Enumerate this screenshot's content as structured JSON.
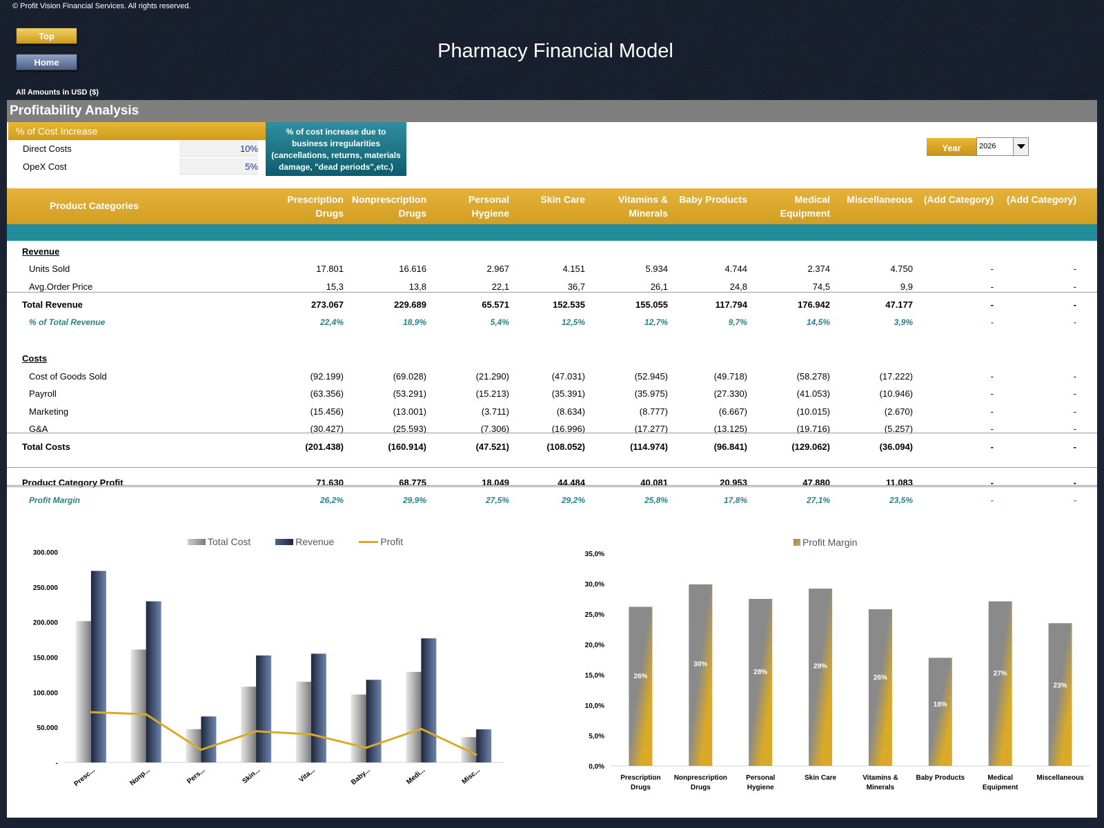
{
  "copyright": "© Profit Vision Financial Services. All rights reserved.",
  "nav": {
    "top_label": "Top",
    "home_label": "Home"
  },
  "title": "Pharmacy Financial Model",
  "amounts_note": "All Amounts in  USD ($)",
  "section_title": "Profitability Analysis",
  "cost_increase": {
    "header": "% of Cost Increase",
    "rows": [
      {
        "label": "Direct Costs",
        "value": "10%"
      },
      {
        "label": "OpeX Cost",
        "value": "5%"
      }
    ],
    "note": "% of cost increase due to business irregularities (cancellations, returns, materials damage, \"dead periods\",etc.)"
  },
  "year": {
    "label": "Year",
    "value": "2026"
  },
  "table": {
    "header_label": "Product Categories",
    "columns": [
      "Prescription\nDrugs",
      "Nonprescription\nDrugs",
      "Personal\nHygiene",
      "Skin Care",
      "Vitamins &\nMinerals",
      "Baby Products",
      "Medical\nEquipment",
      "Miscellaneous",
      "(Add Category)",
      "(Add Category)"
    ],
    "revenue_title": "Revenue",
    "units_sold": {
      "label": "Units Sold",
      "values": [
        "17.801",
        "16.616",
        "2.967",
        "4.151",
        "5.934",
        "4.744",
        "2.374",
        "4.750",
        "-",
        "-"
      ]
    },
    "avg_price": {
      "label": "Avg.Order Price",
      "values": [
        "15,3",
        "13,8",
        "22,1",
        "36,7",
        "26,1",
        "24,8",
        "74,5",
        "9,9",
        "-",
        "-"
      ]
    },
    "total_revenue": {
      "label": "Total Revenue",
      "values": [
        "273.067",
        "229.689",
        "65.571",
        "152.535",
        "155.055",
        "117.794",
        "176.942",
        "47.177",
        "-",
        "-"
      ]
    },
    "pct_revenue": {
      "label": "% of Total Revenue",
      "values": [
        "22,4%",
        "18,9%",
        "5,4%",
        "12,5%",
        "12,7%",
        "9,7%",
        "14,5%",
        "3,9%",
        "-",
        "-"
      ]
    },
    "costs_title": "Costs",
    "cogs": {
      "label": "Cost of Goods Sold",
      "values": [
        "(92.199)",
        "(69.028)",
        "(21.290)",
        "(47.031)",
        "(52.945)",
        "(49.718)",
        "(58.278)",
        "(17.222)",
        "-",
        "-"
      ]
    },
    "payroll": {
      "label": "Payroll",
      "values": [
        "(63.356)",
        "(53.291)",
        "(15.213)",
        "(35.391)",
        "(35.975)",
        "(27.330)",
        "(41.053)",
        "(10.946)",
        "-",
        "-"
      ]
    },
    "marketing": {
      "label": "Marketing",
      "values": [
        "(15.456)",
        "(13.001)",
        "(3.711)",
        "(8.634)",
        "(8.777)",
        "(6.667)",
        "(10.015)",
        "(2.670)",
        "-",
        "-"
      ]
    },
    "ga": {
      "label": "G&A",
      "values": [
        "(30.427)",
        "(25.593)",
        "(7.306)",
        "(16.996)",
        "(17.277)",
        "(13.125)",
        "(19.716)",
        "(5.257)",
        "-",
        "-"
      ]
    },
    "total_costs": {
      "label": "Total Costs",
      "values": [
        "(201.438)",
        "(160.914)",
        "(47.521)",
        "(108.052)",
        "(114.974)",
        "(96.841)",
        "(129.062)",
        "(36.094)",
        "-",
        "-"
      ]
    },
    "profit": {
      "label": "Product Category Profit",
      "values": [
        "71.630",
        "68.775",
        "18.049",
        "44.484",
        "40.081",
        "20.953",
        "47.880",
        "11.083",
        "-",
        "-"
      ]
    },
    "margin": {
      "label": "Profit Margin",
      "values": [
        "26,2%",
        "29,9%",
        "27,5%",
        "29,2%",
        "25,8%",
        "17,8%",
        "27,1%",
        "23,5%",
        "-",
        "-"
      ]
    }
  },
  "chart_data": [
    {
      "type": "bar",
      "categories": [
        "Presc...",
        "Nonp...",
        "Pers...",
        "Skin...",
        "Vita...",
        "Baby...",
        "Medi...",
        "Misc..."
      ],
      "series": [
        {
          "name": "Total Cost",
          "values": [
            201438,
            160914,
            47521,
            108052,
            114974,
            96841,
            129062,
            36094
          ]
        },
        {
          "name": "Revenue",
          "values": [
            273067,
            229689,
            65571,
            152535,
            155055,
            117794,
            176942,
            47177
          ]
        },
        {
          "name": "Profit",
          "type": "line",
          "values": [
            71630,
            68775,
            18049,
            44484,
            40081,
            20953,
            47880,
            11083
          ]
        }
      ],
      "yticks": [
        "-",
        "50.000",
        "100.000",
        "150.000",
        "200.000",
        "250.000",
        "300.000"
      ],
      "ylim": [
        0,
        300000
      ],
      "legend": "top",
      "colors": {
        "cost": "#9a9a9a",
        "revenue": "#2c3b58",
        "profit": "#d9a927"
      }
    },
    {
      "type": "bar",
      "categories": [
        "Prescription\nDrugs",
        "Nonprescription\nDrugs",
        "Personal\nHygiene",
        "Skin Care",
        "Vitamins &\nMinerals",
        "Baby Products",
        "Medical\nEquipment",
        "Miscellaneous"
      ],
      "series": [
        {
          "name": "Profit Margin",
          "values": [
            26.2,
            29.9,
            27.5,
            29.2,
            25.8,
            17.8,
            27.1,
            23.5
          ],
          "labels": [
            "26%",
            "30%",
            "28%",
            "29%",
            "26%",
            "18%",
            "27%",
            "23%"
          ]
        }
      ],
      "yticks": [
        "0,0%",
        "5,0%",
        "10,0%",
        "15,0%",
        "20,0%",
        "25,0%",
        "30,0%",
        "35,0%"
      ],
      "ylim": [
        0,
        35
      ],
      "legend": "top",
      "colors": {
        "bar": "#d9a927",
        "bar2": "#8a8a8a"
      }
    }
  ]
}
